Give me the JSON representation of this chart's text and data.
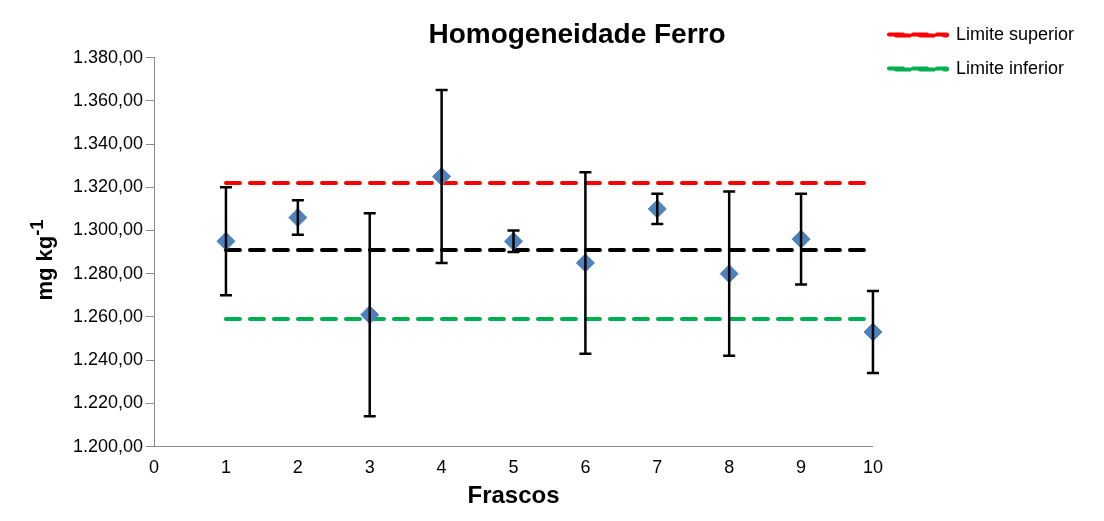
{
  "chart_data": {
    "type": "scatter",
    "title": "Homogeneidade Ferro",
    "xlabel": "Frascos",
    "ylabel": "mg kg$^{-1}$",
    "xlim": [
      0,
      10
    ],
    "xticks": [
      0,
      1,
      2,
      3,
      4,
      5,
      6,
      7,
      8,
      9,
      10
    ],
    "ylim": [
      1200,
      1380
    ],
    "yticks": [
      {
        "value": 1200,
        "label": "1.200,00"
      },
      {
        "value": 1220,
        "label": "1.220,00"
      },
      {
        "value": 1240,
        "label": "1.240,00"
      },
      {
        "value": 1260,
        "label": "1.260,00"
      },
      {
        "value": 1280,
        "label": "1.280,00"
      },
      {
        "value": 1300,
        "label": "1.300,00"
      },
      {
        "value": 1320,
        "label": "1.320,00"
      },
      {
        "value": 1340,
        "label": "1.340,00"
      },
      {
        "value": 1360,
        "label": "1.360,00"
      },
      {
        "value": 1380,
        "label": "1.380,00"
      }
    ],
    "grid": false,
    "legend": "top right",
    "series": [
      {
        "marker": "diamond",
        "color": "#4f81bd",
        "x": [
          1,
          2,
          3,
          4,
          5,
          6,
          7,
          8,
          9,
          10
        ],
        "values": [
          1295,
          1306,
          1261,
          1325,
          1295,
          1285,
          1310,
          1280,
          1296,
          1253
        ],
        "errors": [
          25,
          8,
          47,
          40,
          5,
          42,
          7,
          38,
          21,
          19
        ]
      },
      {
        "type": "line",
        "marker": "none",
        "line_style": "dashed",
        "name": "Limite superior",
        "color": "#ff0000",
        "x": [
          1,
          10
        ],
        "values": [
          1322,
          1322
        ]
      },
      {
        "type": "line",
        "marker": "none",
        "line_style": "dashed",
        "color": "#000000",
        "x": [
          1,
          10
        ],
        "values": [
          1291,
          1291
        ]
      },
      {
        "type": "line",
        "marker": "none",
        "line_style": "dashed",
        "name": "Limite inferior",
        "color": "#00b050",
        "x": [
          1,
          10
        ],
        "values": [
          1259,
          1259
        ]
      }
    ]
  }
}
